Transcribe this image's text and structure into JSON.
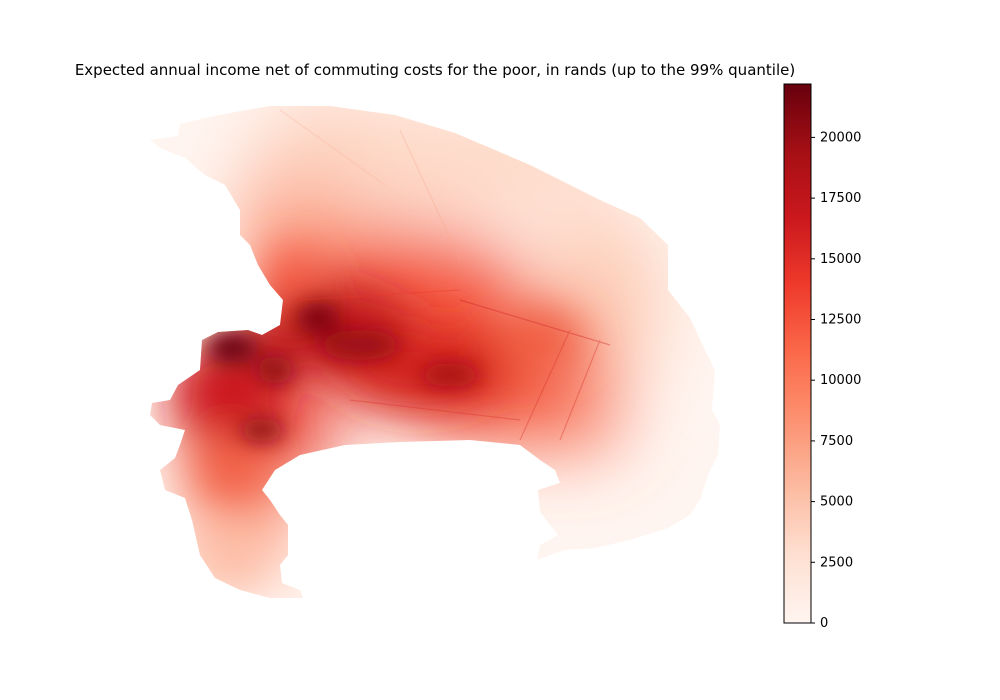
{
  "title": "Expected annual income net of commuting costs for the poor, in rands (up to the 99% quantile)",
  "colormap": {
    "name": "Reds",
    "stops": [
      "#fff5f0",
      "#fee0d2",
      "#fcbba1",
      "#fc9272",
      "#fb6a4a",
      "#ef3b2c",
      "#cb181d",
      "#a50f15",
      "#67000d"
    ]
  },
  "colorbar": {
    "min": 0,
    "max": 22200,
    "ticks": [
      0,
      2500,
      5000,
      7500,
      10000,
      12500,
      15000,
      17500,
      20000
    ]
  }
}
